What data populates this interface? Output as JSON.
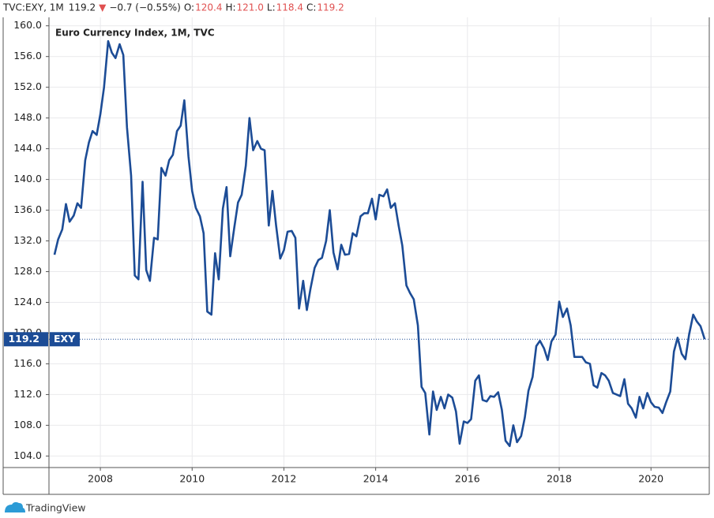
{
  "chart_data": {
    "type": "line",
    "title": "Euro Currency Index, 1M, TVC",
    "header": {
      "symbol": "TVC:EXY, 1M",
      "last": "119.2",
      "arrow": "▼",
      "change": "−0.7 (−0.55%)",
      "ohlc": [
        {
          "label": "O:",
          "value": "120.4"
        },
        {
          "label": "H:",
          "value": "121.0"
        },
        {
          "label": "L:",
          "value": "118.4"
        },
        {
          "label": "C:",
          "value": "119.2"
        }
      ]
    },
    "brand": "TradingView",
    "last_value": {
      "value": 119.2,
      "label": "119.2"
    },
    "xlim": [
      2006.88,
      2021.27
    ],
    "ylim": [
      102.5,
      161.1
    ],
    "xticks": [
      2008,
      2010,
      2012,
      2014,
      2016,
      2018,
      2020
    ],
    "yticks": [
      {
        "value": 104,
        "label": "104.0"
      },
      {
        "value": 108,
        "label": "108.0"
      },
      {
        "value": 112,
        "label": "112.0"
      },
      {
        "value": 116,
        "label": "116.0"
      },
      {
        "value": 120,
        "label": "120.0"
      },
      {
        "value": 124,
        "label": "124.0"
      },
      {
        "value": 128,
        "label": "128.0"
      },
      {
        "value": 132,
        "label": "132.0"
      },
      {
        "value": 136,
        "label": "136.0"
      },
      {
        "value": 140,
        "label": "140.0"
      },
      {
        "value": 144,
        "label": "144.0"
      },
      {
        "value": 148,
        "label": "148.0"
      },
      {
        "value": 152,
        "label": "152.0"
      },
      {
        "value": 156,
        "label": "156.0"
      },
      {
        "value": 160,
        "label": "160.0"
      }
    ],
    "grid": true,
    "x": [
      2007.0,
      2007.08,
      2007.17,
      2007.25,
      2007.33,
      2007.42,
      2007.5,
      2007.58,
      2007.67,
      2007.75,
      2007.83,
      2007.92,
      2008.0,
      2008.08,
      2008.17,
      2008.25,
      2008.33,
      2008.42,
      2008.5,
      2008.58,
      2008.67,
      2008.75,
      2008.83,
      2008.92,
      2009.0,
      2009.08,
      2009.17,
      2009.25,
      2009.33,
      2009.42,
      2009.5,
      2009.58,
      2009.67,
      2009.75,
      2009.83,
      2009.92,
      2010.0,
      2010.08,
      2010.17,
      2010.25,
      2010.33,
      2010.42,
      2010.5,
      2010.58,
      2010.67,
      2010.75,
      2010.83,
      2010.92,
      2011.0,
      2011.08,
      2011.17,
      2011.25,
      2011.33,
      2011.42,
      2011.5,
      2011.58,
      2011.67,
      2011.75,
      2011.83,
      2011.92,
      2012.0,
      2012.08,
      2012.17,
      2012.25,
      2012.33,
      2012.42,
      2012.5,
      2012.58,
      2012.67,
      2012.75,
      2012.83,
      2012.92,
      2013.0,
      2013.08,
      2013.17,
      2013.25,
      2013.33,
      2013.42,
      2013.5,
      2013.58,
      2013.67,
      2013.75,
      2013.83,
      2013.92,
      2014.0,
      2014.08,
      2014.17,
      2014.25,
      2014.33,
      2014.42,
      2014.5,
      2014.58,
      2014.67,
      2014.75,
      2014.83,
      2014.92,
      2015.0,
      2015.08,
      2015.17,
      2015.25,
      2015.33,
      2015.42,
      2015.5,
      2015.58,
      2015.67,
      2015.75,
      2015.83,
      2015.92,
      2016.0,
      2016.08,
      2016.17,
      2016.25,
      2016.33,
      2016.42,
      2016.5,
      2016.58,
      2016.67,
      2016.75,
      2016.83,
      2016.92,
      2017.0,
      2017.08,
      2017.17,
      2017.25,
      2017.33,
      2017.42,
      2017.5,
      2017.58,
      2017.67,
      2017.75,
      2017.83,
      2017.92,
      2018.0,
      2018.08,
      2018.17,
      2018.25,
      2018.33,
      2018.42,
      2018.5,
      2018.58,
      2018.67,
      2018.75,
      2018.83,
      2018.92,
      2019.0,
      2019.08,
      2019.17,
      2019.25,
      2019.33,
      2019.42,
      2019.5,
      2019.58,
      2019.67,
      2019.75,
      2019.83,
      2019.92,
      2020.0,
      2020.08,
      2020.17,
      2020.25,
      2020.33,
      2020.42,
      2020.5,
      2020.58,
      2020.67,
      2020.75,
      2020.83,
      2020.92,
      2021.0,
      2021.08,
      2021.17
    ],
    "series": [
      {
        "name": "EXY",
        "color": "#1c4c96",
        "values": [
          130.2,
          132.2,
          133.5,
          136.8,
          134.5,
          135.3,
          136.9,
          136.3,
          142.5,
          144.8,
          146.3,
          145.8,
          148.5,
          152.0,
          158.0,
          156.5,
          155.8,
          157.6,
          156.2,
          146.8,
          140.5,
          127.5,
          127.0,
          139.7,
          128.2,
          126.8,
          132.4,
          132.2,
          141.5,
          140.5,
          142.5,
          143.2,
          146.3,
          147.0,
          150.3,
          143.0,
          138.5,
          136.3,
          135.2,
          133.0,
          122.8,
          122.4,
          130.4,
          127.0,
          136.2,
          139.0,
          130.0,
          133.8,
          137.0,
          138.0,
          141.8,
          148.0,
          143.8,
          145.0,
          144.0,
          143.8,
          134.0,
          138.5,
          134.0,
          129.7,
          130.8,
          133.2,
          133.3,
          132.4,
          123.2,
          126.8,
          123.0,
          125.8,
          128.5,
          129.5,
          129.8,
          132.0,
          136.0,
          130.5,
          128.3,
          131.5,
          130.2,
          130.3,
          133.0,
          132.6,
          135.2,
          135.6,
          135.6,
          137.5,
          134.8,
          138.0,
          137.8,
          138.7,
          136.3,
          136.9,
          134.0,
          131.4,
          126.2,
          125.2,
          124.4,
          121.0,
          113.0,
          112.2,
          106.8,
          112.4,
          110.0,
          111.7,
          110.2,
          112.0,
          111.6,
          109.8,
          105.6,
          108.5,
          108.3,
          108.8,
          113.8,
          114.5,
          111.3,
          111.1,
          111.8,
          111.7,
          112.3,
          110.0,
          106.0,
          105.3,
          108.0,
          105.8,
          106.6,
          109.0,
          112.5,
          114.3,
          118.3,
          119.0,
          118.0,
          116.5,
          118.9,
          119.8,
          124.1,
          122.1,
          123.2,
          121.0,
          116.9,
          116.9,
          116.9,
          116.2,
          116.0,
          113.2,
          112.9,
          114.8,
          114.5,
          113.8,
          112.2,
          112.0,
          111.8,
          114.0,
          110.8,
          110.2,
          109.0,
          111.7,
          110.2,
          112.2,
          111.0,
          110.4,
          110.3,
          109.6,
          111.0,
          112.4,
          117.6,
          119.4,
          117.3,
          116.6,
          119.8,
          122.4,
          121.5,
          120.9,
          119.2
        ]
      }
    ]
  }
}
